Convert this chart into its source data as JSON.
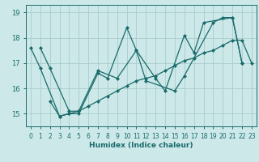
{
  "xlabel": "Humidex (Indice chaleur)",
  "xlim": [
    -0.5,
    23.5
  ],
  "ylim": [
    14.5,
    19.3
  ],
  "yticks": [
    15,
    16,
    17,
    18,
    19
  ],
  "xticks": [
    0,
    1,
    2,
    3,
    4,
    5,
    6,
    7,
    8,
    9,
    10,
    11,
    12,
    13,
    14,
    15,
    16,
    17,
    18,
    19,
    20,
    21,
    22,
    23
  ],
  "bg_color": "#cce8e8",
  "line_color": "#1a6b6b",
  "grid_color": "#aacccc",
  "lines": [
    {
      "x": [
        0,
        1,
        3,
        4,
        5,
        7,
        8,
        10,
        11,
        12,
        15,
        16,
        19,
        20,
        21,
        22
      ],
      "y": [
        17.6,
        16.8,
        14.9,
        15.0,
        15.0,
        16.6,
        16.4,
        18.4,
        17.5,
        16.3,
        15.9,
        16.5,
        18.6,
        18.8,
        18.8,
        17.0
      ]
    },
    {
      "x": [
        1,
        2,
        4,
        5,
        7,
        9,
        11,
        13,
        14,
        16,
        17,
        18,
        21,
        22
      ],
      "y": [
        17.6,
        16.8,
        15.1,
        15.1,
        16.7,
        16.4,
        17.5,
        16.4,
        15.9,
        18.1,
        17.4,
        18.6,
        18.8,
        17.0
      ]
    },
    {
      "x": [
        2,
        3,
        4,
        5,
        6,
        7,
        8,
        9,
        10,
        11,
        12,
        13,
        14,
        15,
        16,
        17,
        18,
        19,
        20,
        21,
        22,
        23
      ],
      "y": [
        15.5,
        14.9,
        15.0,
        15.1,
        15.3,
        15.5,
        15.7,
        15.9,
        16.1,
        16.3,
        16.4,
        16.5,
        16.7,
        16.9,
        17.1,
        17.2,
        17.4,
        17.5,
        17.7,
        17.9,
        17.9,
        17.0
      ]
    }
  ],
  "tick_fontsize": 5.5,
  "xlabel_fontsize": 6.5
}
